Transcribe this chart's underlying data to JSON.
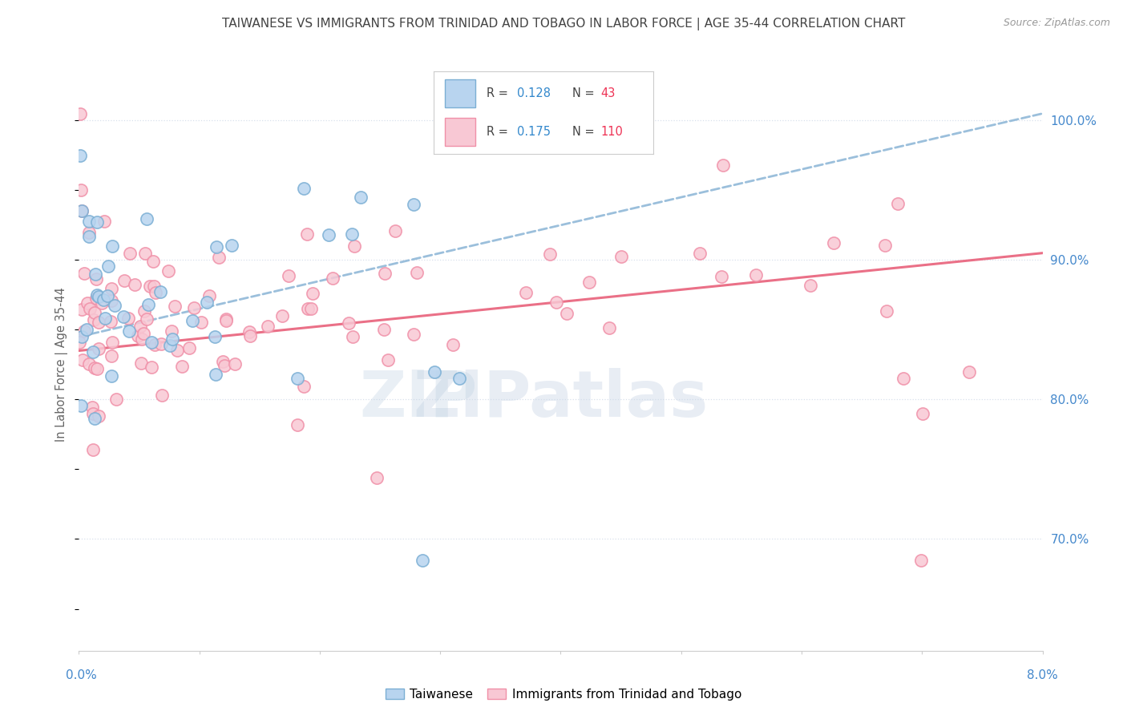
{
  "title": "TAIWANESE VS IMMIGRANTS FROM TRINIDAD AND TOBAGO IN LABOR FORCE | AGE 35-44 CORRELATION CHART",
  "source": "Source: ZipAtlas.com",
  "ylabel": "In Labor Force | Age 35-44",
  "ylabel_right_ticks": [
    70.0,
    80.0,
    90.0,
    100.0
  ],
  "xmin": 0.0,
  "xmax": 0.08,
  "ymin": 62.0,
  "ymax": 103.0,
  "blue_R": 0.128,
  "blue_N": 43,
  "pink_R": 0.175,
  "pink_N": 110,
  "blue_color": "#7bafd4",
  "blue_fill": "#b8d4ef",
  "pink_color": "#f090a8",
  "pink_fill": "#f8c8d4",
  "trend_blue_color": "#90b8d8",
  "trend_pink_color": "#e8607a",
  "grid_color": "#d8e0ec",
  "background_color": "#ffffff",
  "title_color": "#444444",
  "axis_label_color": "#4488cc",
  "source_color": "#999999",
  "legend_R_color": "#3388cc",
  "legend_N_color": "#ee3355",
  "blue_trend_x0": 0.0,
  "blue_trend_y0": 84.5,
  "blue_trend_x1": 0.08,
  "blue_trend_y1": 100.5,
  "pink_trend_x0": 0.0,
  "pink_trend_y0": 83.5,
  "pink_trend_x1": 0.08,
  "pink_trend_y1": 90.5
}
